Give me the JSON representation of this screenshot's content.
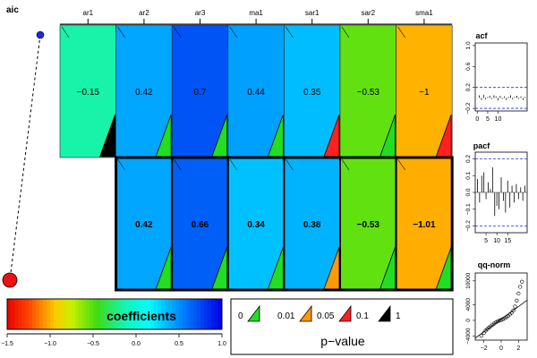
{
  "chart_data": [
    {
      "type": "heatmap",
      "title": "aic",
      "columns": [
        "ar1",
        "ar2",
        "ar3",
        "ma1",
        "sar1",
        "sar2",
        "sma1"
      ],
      "color_scale": {
        "min": -1.5,
        "max": 1.0
      },
      "rows": [
        {
          "present": [
            true,
            true,
            true,
            true,
            true,
            true,
            true
          ],
          "labels": [
            "−0.15",
            "0.42",
            "0.7",
            "0.44",
            "0.35",
            "−0.53",
            "−1"
          ],
          "values": [
            -0.15,
            0.42,
            0.7,
            0.44,
            0.35,
            -0.53,
            -1.0
          ],
          "pvalue_color": [
            "#000000",
            "#22dd22",
            "#22dd22",
            "#22dd22",
            "#ff2020",
            "#22dd22",
            "#ff2020"
          ],
          "criterion_marker": {
            "fill": "#1a2bd9"
          },
          "label_bold": false,
          "highlighted": false
        },
        {
          "present": [
            false,
            true,
            true,
            true,
            true,
            true,
            true
          ],
          "labels": [
            "",
            "0.42",
            "0.66",
            "0.34",
            "0.38",
            "−0.53",
            "−1.01"
          ],
          "values": [
            null,
            0.42,
            0.66,
            0.34,
            0.38,
            -0.53,
            -1.01
          ],
          "pvalue_color": [
            null,
            "#22dd22",
            "#22dd22",
            "#22dd22",
            "#ff9900",
            "#22dd22",
            "#22dd22"
          ],
          "criterion_marker": {
            "fill": "#ee1111"
          },
          "label_bold": true,
          "highlighted": true
        }
      ]
    },
    {
      "type": "bar",
      "title": "acf",
      "lags": [
        1,
        2,
        3,
        4,
        5,
        6,
        7,
        8,
        9,
        10,
        11,
        12,
        13,
        14,
        15,
        16,
        17,
        18,
        19,
        20,
        21,
        22,
        23
      ],
      "values": [
        0.05,
        -0.04,
        0.06,
        -0.03,
        0.02,
        0.04,
        -0.02,
        0.05,
        0.03,
        -0.05,
        0.04,
        -0.02,
        0.03,
        -0.04,
        0.02,
        0.05,
        -0.03,
        0.02,
        0.04,
        -0.02,
        0.03,
        -0.04,
        0.02
      ],
      "ylim": [
        -0.25,
        1.05
      ],
      "yticks": [
        "−0.2",
        "0.2",
        "0.6",
        "1.0"
      ],
      "ytick_values": [
        -0.2,
        0.2,
        0.6,
        1.0
      ],
      "xticks": [
        "0",
        "5",
        "10"
      ],
      "xtick_values": [
        0,
        5,
        10
      ],
      "xlim": [
        -1,
        24
      ],
      "band": 0.2
    },
    {
      "type": "bar",
      "title": "pacf",
      "lags": [
        1,
        2,
        3,
        4,
        5,
        6,
        7,
        8,
        9,
        10,
        11,
        12,
        13,
        14,
        15,
        16,
        17,
        18,
        19,
        20,
        21,
        22,
        23
      ],
      "values": [
        0.08,
        -0.06,
        0.1,
        0.12,
        -0.04,
        0.06,
        0.02,
        0.15,
        -0.14,
        -0.08,
        -0.1,
        0.09,
        -0.05,
        -0.12,
        0.07,
        -0.09,
        0.04,
        -0.06,
        0.05,
        -0.04,
        0.03,
        -0.05,
        0.04
      ],
      "ylim": [
        -0.24,
        0.24
      ],
      "yticks": [
        "−0.2",
        "−0.1",
        "0.0",
        "0.1",
        "0.2"
      ],
      "ytick_values": [
        -0.2,
        -0.1,
        0.0,
        0.1,
        0.2
      ],
      "xticks": [
        "5",
        "10",
        "15"
      ],
      "xtick_values": [
        5,
        10,
        15
      ],
      "xlim": [
        0,
        24
      ],
      "band": 0.2
    },
    {
      "type": "scatter",
      "title": "qq-norm",
      "xlim": [
        -3,
        3
      ],
      "ylim": [
        -5000,
        12000
      ],
      "xticks": [
        "−2",
        "0",
        "2"
      ],
      "xtick_values": [
        -2,
        0,
        2
      ],
      "yticks": [
        "−4000",
        "0",
        "4000",
        "10000"
      ],
      "ytick_values": [
        -4000,
        0,
        4000,
        10000
      ],
      "line": {
        "slope": 1600,
        "intercept": 300
      },
      "points": [
        [
          -2.3,
          -3900
        ],
        [
          -2.0,
          -3200
        ],
        [
          -1.8,
          -2600
        ],
        [
          -1.6,
          -2200
        ],
        [
          -1.4,
          -1800
        ],
        [
          -1.2,
          -1500
        ],
        [
          -1.0,
          -1100
        ],
        [
          -0.8,
          -800
        ],
        [
          -0.6,
          -500
        ],
        [
          -0.4,
          -250
        ],
        [
          -0.2,
          -50
        ],
        [
          0.0,
          100
        ],
        [
          0.2,
          300
        ],
        [
          0.4,
          550
        ],
        [
          0.6,
          800
        ],
        [
          0.8,
          1100
        ],
        [
          1.0,
          1500
        ],
        [
          1.2,
          1900
        ],
        [
          1.4,
          2500
        ],
        [
          1.6,
          3500
        ],
        [
          1.8,
          5000
        ],
        [
          2.0,
          6800
        ],
        [
          2.2,
          8500
        ],
        [
          2.4,
          9800
        ]
      ]
    }
  ],
  "legend": {
    "colorbar_label": "coefficients",
    "colorbar_ticks": [
      "−1.5",
      "−1.0",
      "−0.5",
      "0.0",
      "0.5",
      "1.0"
    ],
    "colorbar_tick_values": [
      -1.5,
      -1.0,
      -0.5,
      0.0,
      0.5,
      1.0
    ],
    "pvalue_title": "p−value",
    "pvalue_breaks": [
      "0",
      "0.01",
      "0.05",
      "0.1",
      "1"
    ],
    "pvalue_colors": [
      "#22dd22",
      "#ff9900",
      "#ff2020",
      "#000000"
    ]
  }
}
